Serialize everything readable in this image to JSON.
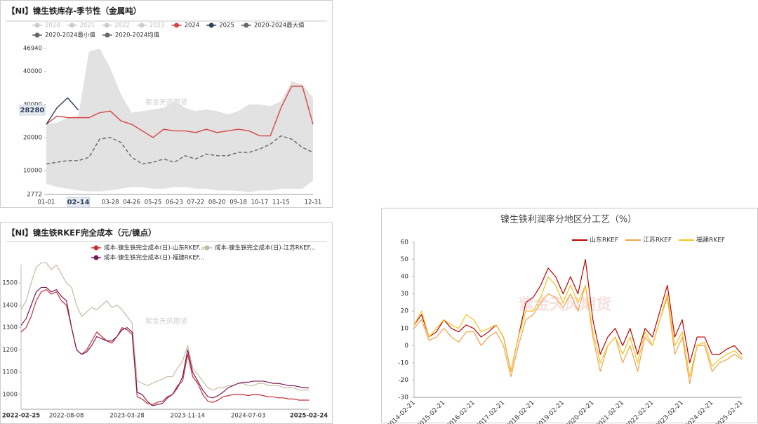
{
  "chart_data": [
    {
      "type": "line",
      "title": "【NI】镍生铁库存-季节性（金属吨）",
      "watermark": "紫金天风期货",
      "categories": [
        "01-01",
        null,
        null,
        "02-14",
        null,
        null,
        "03-28",
        null,
        "04-26",
        null,
        "05-25",
        null,
        "06-23",
        null,
        "07-22",
        null,
        "08-20",
        null,
        "09-18",
        null,
        "10-17",
        null,
        "11-15",
        null,
        null,
        "12-31"
      ],
      "ylim": [
        2772,
        46940
      ],
      "yticks": [
        2772,
        10000,
        20000,
        30000,
        40000,
        46940
      ],
      "series": [
        {
          "name": "2020",
          "color": "#cccccc",
          "hidden": true
        },
        {
          "name": "2021",
          "color": "#cccccc",
          "hidden": true
        },
        {
          "name": "2022",
          "color": "#cccccc",
          "hidden": true
        },
        {
          "name": "2023",
          "color": "#cccccc",
          "hidden": true
        },
        {
          "name": "2024",
          "color": "#d64545",
          "values": [
            24000,
            26500,
            26000,
            26000,
            26000,
            27500,
            28000,
            25000,
            24000,
            22000,
            20000,
            22500,
            22000,
            22000,
            21500,
            22500,
            21500,
            22000,
            22500,
            22000,
            20500,
            20500,
            29000,
            35500,
            35500,
            24000
          ]
        },
        {
          "name": "2025",
          "color": "#2e3f5c",
          "pointer": true,
          "values": [
            24000,
            29000,
            32000,
            28280,
            null,
            null,
            null,
            null,
            null,
            null,
            null,
            null,
            null,
            null,
            null,
            null,
            null,
            null,
            null,
            null,
            null,
            null,
            null,
            null,
            null,
            null
          ]
        },
        {
          "name": "2020-2024最大值",
          "color": "#666666",
          "fill": "#e2e2e2",
          "values": [
            24000,
            24500,
            26000,
            26500,
            46000,
            46940,
            41000,
            33000,
            27500,
            28000,
            28500,
            29000,
            31000,
            29000,
            28000,
            28500,
            28000,
            27000,
            28000,
            30000,
            30000,
            29500,
            31000,
            37000,
            36000,
            32000
          ]
        },
        {
          "name": "2020-2024最小值",
          "color": "#666666",
          "fill": "#ffffff",
          "values": [
            6000,
            5000,
            4500,
            4000,
            3700,
            3700,
            4000,
            4500,
            5000,
            5000,
            4500,
            4500,
            5000,
            5000,
            4500,
            4500,
            4000,
            4000,
            3800,
            3500,
            4000,
            4000,
            4500,
            4500,
            4500,
            7000
          ]
        },
        {
          "name": "2020-2024均值",
          "color": "#666666",
          "dash": true,
          "values": [
            12000,
            12500,
            13000,
            13000,
            14000,
            19500,
            20000,
            18500,
            14000,
            12000,
            12500,
            13500,
            12500,
            14500,
            13500,
            15000,
            14500,
            14500,
            15500,
            15500,
            16500,
            18000,
            20500,
            19500,
            17000,
            15500
          ]
        }
      ]
    },
    {
      "type": "line",
      "title": "【NI】镍生铁RKEF完全成本（元/镍点）",
      "watermark": "紫金天风期货",
      "categories": [
        "2022-02-25",
        null,
        null,
        null,
        null,
        null,
        null,
        null,
        null,
        "2022-08-08",
        null,
        null,
        null,
        null,
        null,
        null,
        null,
        null,
        null,
        null,
        null,
        "2023-03-28",
        null,
        null,
        null,
        null,
        null,
        null,
        null,
        null,
        null,
        null,
        null,
        "2023-11-14",
        null,
        null,
        null,
        null,
        null,
        null,
        null,
        null,
        null,
        null,
        null,
        "2024-07-03",
        null,
        null,
        null,
        null,
        null,
        null,
        null,
        null,
        null,
        null,
        null,
        "2025-02-24"
      ],
      "ylim": [
        934,
        1582
      ],
      "yticks": [
        1000,
        1100,
        1200,
        1300,
        1400,
        1500
      ],
      "series": [
        {
          "name": "成本-镍生铁完全成本(日)-山东RKEF...",
          "color": "#c62f35",
          "values": [
            1280,
            1300,
            1350,
            1420,
            1460,
            1470,
            1450,
            1460,
            1420,
            1400,
            1300,
            1200,
            1180,
            1200,
            1240,
            1280,
            1260,
            1240,
            1230,
            1260,
            1300,
            1290,
            1270,
            990,
            980,
            960,
            955,
            965,
            970,
            990,
            1000,
            1040,
            1060,
            1180,
            1080,
            1050,
            1000,
            970,
            965,
            975,
            990,
            995,
            1000,
            1000,
            1000,
            995,
            1000,
            1000,
            995,
            990,
            990,
            985,
            985,
            980,
            980,
            975,
            975,
            975
          ]
        },
        {
          "name": "成本-镍生铁完全成本(日)-江苏RKEF...",
          "color": "#c9b9a3",
          "values": [
            1380,
            1420,
            1500,
            1570,
            1590,
            1590,
            1560,
            1580,
            1540,
            1500,
            1480,
            1400,
            1350,
            1370,
            1390,
            1380,
            1400,
            1420,
            1390,
            1400,
            1380,
            1350,
            1320,
            1060,
            1050,
            1040,
            1050,
            1060,
            1070,
            1080,
            1080,
            1120,
            1150,
            1220,
            1120,
            1090,
            1060,
            1030,
            1020,
            1030,
            1030,
            1040,
            1040,
            1050,
            1050,
            1040,
            1040,
            1050,
            1050,
            1040,
            1040,
            1040,
            1030,
            1030,
            1030,
            1020,
            1020,
            1020
          ]
        },
        {
          "name": "成本-镍生铁完全成本(日)-福建RKEF...",
          "color": "#7b1a55",
          "values": [
            1310,
            1340,
            1400,
            1460,
            1480,
            1480,
            1460,
            1470,
            1440,
            1420,
            1300,
            1200,
            1180,
            1190,
            1220,
            1260,
            1250,
            1240,
            1240,
            1260,
            1290,
            1300,
            1280,
            1010,
            1000,
            970,
            950,
            955,
            960,
            985,
            1000,
            1030,
            1080,
            1200,
            1100,
            1060,
            1020,
            990,
            985,
            995,
            1010,
            1030,
            1040,
            1050,
            1055,
            1055,
            1060,
            1060,
            1060,
            1055,
            1050,
            1050,
            1045,
            1040,
            1040,
            1035,
            1030,
            1030
          ]
        }
      ]
    },
    {
      "type": "line",
      "title": "镍生铁利润率分地区分工艺（%）",
      "watermark": "紫金天风期货",
      "categories": [
        "2014-02-21",
        null,
        null,
        null,
        "2015-02-21",
        null,
        null,
        null,
        "2016-02-21",
        null,
        null,
        null,
        "2017-02-21",
        null,
        null,
        null,
        "2018-02-21",
        null,
        null,
        null,
        "2019-02-21",
        null,
        null,
        null,
        "2020-02-21",
        null,
        null,
        null,
        "2021-02-21",
        null,
        null,
        null,
        "2022-02-21",
        null,
        null,
        null,
        "2023-02-21",
        null,
        null,
        null,
        "2024-02-21",
        null,
        null,
        null,
        "2025-02-21"
      ],
      "ylim": [
        -30,
        60
      ],
      "yticks": [
        -30,
        -20,
        -10,
        0,
        10,
        20,
        30,
        40,
        50,
        60
      ],
      "series": [
        {
          "name": "山东RKEF",
          "color": "#c00000",
          "values": [
            12,
            18,
            5,
            8,
            15,
            10,
            8,
            12,
            10,
            5,
            8,
            12,
            5,
            -15,
            5,
            25,
            28,
            35,
            45,
            40,
            30,
            40,
            30,
            50,
            15,
            -5,
            5,
            10,
            0,
            10,
            -5,
            10,
            5,
            20,
            35,
            5,
            15,
            -10,
            5,
            5,
            -5,
            -5,
            -2,
            0,
            -5
          ]
        },
        {
          "name": "江苏RKEF",
          "color": "#f4a04a",
          "values": [
            10,
            15,
            3,
            5,
            10,
            5,
            2,
            8,
            8,
            0,
            5,
            8,
            0,
            -18,
            0,
            15,
            18,
            25,
            30,
            28,
            22,
            30,
            20,
            35,
            5,
            -15,
            0,
            5,
            -10,
            0,
            -15,
            5,
            0,
            15,
            28,
            -5,
            5,
            -22,
            0,
            0,
            -15,
            -10,
            -8,
            -5,
            -8
          ]
        },
        {
          "name": "福建RKEF",
          "color": "#f7c31c",
          "values": [
            12,
            20,
            5,
            10,
            15,
            12,
            10,
            18,
            15,
            8,
            10,
            12,
            5,
            -15,
            5,
            20,
            20,
            28,
            40,
            35,
            25,
            35,
            25,
            35,
            8,
            -10,
            0,
            5,
            -5,
            5,
            -10,
            8,
            0,
            15,
            30,
            0,
            8,
            -18,
            0,
            2,
            -12,
            -8,
            -5,
            -3,
            -7
          ]
        }
      ]
    }
  ]
}
